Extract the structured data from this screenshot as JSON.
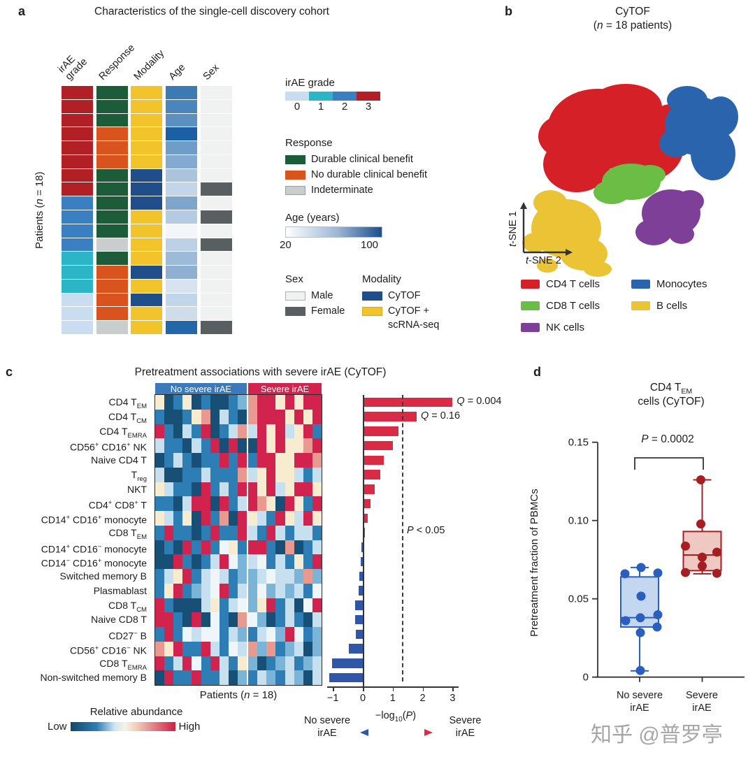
{
  "watermark": "知乎 @普罗亭",
  "panels": {
    "a": {
      "label": "a",
      "title": "Characteristics of the single-cell discovery cohort",
      "ylabel": "Patients (*n* = 18)",
      "col_headers": [
        "irAE\ngrade",
        "Response",
        "Modality",
        "Age",
        "Sex"
      ],
      "legend_irae": {
        "title": "irAE grade",
        "ticks": [
          "0",
          "1",
          "2",
          "3"
        ]
      },
      "legend_response": {
        "title": "Response",
        "items": [
          "Durable clinical benefit",
          "No durable clinical benefit",
          "Indeterminate"
        ]
      },
      "legend_age": {
        "title": "Age (years)",
        "min": "20",
        "max": "100"
      },
      "legend_sex": {
        "title": "Sex",
        "items": [
          "Male",
          "Female"
        ]
      },
      "legend_modality": {
        "title": "Modality",
        "item1": "CyTOF",
        "item2_line1": "CyTOF +",
        "item2_line2": "scRNA-seq"
      }
    },
    "b": {
      "label": "b",
      "title": "CyTOF",
      "subtitle": "(*n* = 18 patients)",
      "xlabel": "*t*-SNE 2",
      "ylabel": "*t*-SNE 1"
    },
    "c": {
      "label": "c",
      "title": "Pretreatment associations with severe irAE (CyTOF)",
      "patients_label": "Patients (*n* = 18)",
      "abundance_label": "Relative abundance",
      "low": "Low",
      "high": "High",
      "threshold_label": "*P* < 0.05",
      "foot_left_1": "No severe",
      "foot_left_2": "irAE",
      "foot_center": "−log_{10}(*P*)",
      "foot_right_1": "Severe",
      "foot_right_2": "irAE"
    },
    "d": {
      "label": "d",
      "title_1": "CD4 T_{EM}",
      "title_2": "cells (CyTOF)",
      "pval": "*P* = 0.0002",
      "ylabel": "Pretreatment fraction of PBMCs",
      "xlab1_1": "No severe",
      "xlab1_2": "irAE",
      "xlab2_1": "Severe",
      "xlab2_2": "irAE"
    }
  },
  "chart_data": [
    {
      "panel": "a",
      "type": "heatmap",
      "title": "Characteristics of the single-cell discovery cohort",
      "categories": [
        "irAE grade",
        "Response",
        "Modality",
        "Age",
        "Sex"
      ],
      "n_patients": 18,
      "colors": {
        "irae": {
          "0": "#c9ddf0",
          "1": "#2cb5c4",
          "2": "#3a7fc1",
          "3": "#b21f24"
        },
        "response": {
          "DCB": "#1d5c39",
          "NDCB": "#d8541c",
          "IND": "#c9cdcd"
        },
        "modality": {
          "CyTOF": "#1f4e8b",
          "CyTOF+scRNA-seq": "#f3c32c"
        },
        "sex": {
          "M": "#f0f2f2",
          "F": "#595f61"
        }
      },
      "age_scale": {
        "min": 20,
        "max": 100,
        "low_color": "#ffffff",
        "high_color": "#1b4f8c"
      },
      "patients": [
        {
          "irae": "3",
          "response": "DCB",
          "modality": "CyTOF+scRNA-seq",
          "age_color": "#3c7ab3",
          "sex": "M"
        },
        {
          "irae": "3",
          "response": "DCB",
          "modality": "CyTOF+scRNA-seq",
          "age_color": "#4a85bb",
          "sex": "M"
        },
        {
          "irae": "3",
          "response": "DCB",
          "modality": "CyTOF+scRNA-seq",
          "age_color": "#5b90c1",
          "sex": "M"
        },
        {
          "irae": "3",
          "response": "NDCB",
          "modality": "CyTOF+scRNA-seq",
          "age_color": "#1b5fa5",
          "sex": "M"
        },
        {
          "irae": "3",
          "response": "NDCB",
          "modality": "CyTOF+scRNA-seq",
          "age_color": "#6f9cc9",
          "sex": "M"
        },
        {
          "irae": "3",
          "response": "NDCB",
          "modality": "CyTOF+scRNA-seq",
          "age_color": "#84aad1",
          "sex": "M"
        },
        {
          "irae": "3",
          "response": "DCB",
          "modality": "CyTOF",
          "age_color": "#aac4de",
          "sex": "M"
        },
        {
          "irae": "3",
          "response": "DCB",
          "modality": "CyTOF",
          "age_color": "#c3d6e9",
          "sex": "F"
        },
        {
          "irae": "2",
          "response": "DCB",
          "modality": "CyTOF",
          "age_color": "#7ea6cd",
          "sex": "M"
        },
        {
          "irae": "2",
          "response": "DCB",
          "modality": "CyTOF+scRNA-seq",
          "age_color": "#b5cbe3",
          "sex": "F"
        },
        {
          "irae": "2",
          "response": "DCB",
          "modality": "CyTOF+scRNA-seq",
          "age_color": "#f2f6fa",
          "sex": "M"
        },
        {
          "irae": "2",
          "response": "IND",
          "modality": "CyTOF+scRNA-seq",
          "age_color": "#bdd1e6",
          "sex": "F"
        },
        {
          "irae": "1",
          "response": "DCB",
          "modality": "CyTOF+scRNA-seq",
          "age_color": "#9dbbd9",
          "sex": "M"
        },
        {
          "irae": "1",
          "response": "NDCB",
          "modality": "CyTOF",
          "age_color": "#8fb0d3",
          "sex": "M"
        },
        {
          "irae": "1",
          "response": "NDCB",
          "modality": "CyTOF+scRNA-seq",
          "age_color": "#d8e3ef",
          "sex": "M"
        },
        {
          "irae": "0",
          "response": "NDCB",
          "modality": "CyTOF",
          "age_color": "#c3d6e9",
          "sex": "M"
        },
        {
          "irae": "0",
          "response": "NDCB",
          "modality": "CyTOF+scRNA-seq",
          "age_color": "#cfdcea",
          "sex": "M"
        },
        {
          "irae": "0",
          "response": "IND",
          "modality": "CyTOF+scRNA-seq",
          "age_color": "#2268a9",
          "sex": "F"
        }
      ]
    },
    {
      "panel": "b",
      "type": "scatter",
      "title": "CyTOF (n = 18 patients)",
      "xlabel": "t-SNE 2",
      "ylabel": "t-SNE 1",
      "clusters": [
        {
          "name": "CD4 T cells",
          "color": "#d62027"
        },
        {
          "name": "CD8 T cells",
          "color": "#6abd45"
        },
        {
          "name": "NK cells",
          "color": "#7d3f98"
        },
        {
          "name": "Monocytes",
          "color": "#2a64ad"
        },
        {
          "name": "B cells",
          "color": "#eac435"
        }
      ]
    },
    {
      "panel": "c",
      "type": "heatmap+bar",
      "title": "Pretreatment associations with severe irAE (CyTOF)",
      "group_headers": [
        {
          "label": "No severe irAE",
          "color": "#3a7abc",
          "n_patients": 10
        },
        {
          "label": "Severe irAE",
          "color": "#d2234f",
          "n_patients": 8
        }
      ],
      "xlabel": "−log10(P)",
      "xticks": [
        "−1",
        "0",
        "1",
        "2",
        "3"
      ],
      "xtick_values": [
        -1,
        0,
        1,
        2,
        3
      ],
      "threshold_value": 1.3,
      "bar_colors": {
        "positive": "#d92b45",
        "negative": "#3056a8"
      },
      "palette": {
        "D": "#174f77",
        "B": "#2d7eb5",
        "b": "#7ab5d8",
        "L": "#c6e0ef",
        "W": "#eff6f9",
        "C": "#f7ecd0",
        "R": "#d2234f",
        "P": "#e89a90",
        "p": "#f2c4b4"
      },
      "rows": [
        {
          "label": "CD4 T_{EM}",
          "bar": 3.0,
          "annotation": "*Q* = 0.004",
          "cells": "CDBCDBDDBbPRRCRCRR"
        },
        {
          "label": "CD4 T_{CM}",
          "bar": 1.8,
          "annotation": "*Q* = 0.16",
          "cells": "BDDBCPDLBDPRRRCRCR"
        },
        {
          "label": "CD4 T_{EMRA}",
          "bar": 1.18,
          "cells": "RBDLBRDBLPLRCRLCRB"
        },
        {
          "label": "CD56^{+} CD16^{+} NK",
          "bar": 1.0,
          "cells": "LBBDLBRDRDDRCRCCPR"
        },
        {
          "label": "Naive CD4 T",
          "bar": 0.69,
          "cells": "DBLBDBBRBRBRRCCRRP"
        },
        {
          "label": "T_{reg}",
          "bar": 0.58,
          "cells": "LDDBBLBBBPLCRCCLBL"
        },
        {
          "label": "NKT",
          "bar": 0.4,
          "cells": "CLBBDRBLBRRCRLCRRC"
        },
        {
          "label": "CD4^{+} CD8^{+} T",
          "bar": 0.25,
          "cells": "BBDLRRDRBLRPCDRCBR"
        },
        {
          "label": "CD14^{+} CD16^{+} monocyte",
          "bar": 0.17,
          "cells": "CLBCDRBPDRCLBRCLRC"
        },
        {
          "label": "CD8 T_{EM}",
          "bar": 0.06,
          "cells": "BRBBDBRBBRLBRLBLLB"
        },
        {
          "label": "CD14^{+} CD16^{−} monocyte",
          "bar": -0.04,
          "cells": "DBDRBRBWCBRRBDPDBL"
        },
        {
          "label": "CD14^{−} CD16^{+} monocyte",
          "bar": -0.06,
          "cells": "DDRBDBLRWbLWBLBCBR"
        },
        {
          "label": "Switched memory B",
          "bar": -0.12,
          "cells": "BLCRBLWLBbbLWLLbPb"
        },
        {
          "label": "Plasmablast",
          "bar": -0.13,
          "cells": "BCRBbLWRBLbWbLbLBW"
        },
        {
          "label": "CD8 T_{CM}",
          "bar": -0.25,
          "cells": "RBDDDLCBLWbCRBLDWR"
        },
        {
          "label": "Naive CD8 T",
          "bar": -0.25,
          "cells": "RRBDRDWBDPWbDBLBDL"
        },
        {
          "label": "CD27^{−} B",
          "bar": -0.23,
          "cells": "BRBWLWWBLbBLWbRWBb"
        },
        {
          "label": "CD56^{+} CD16^{−} NK",
          "bar": -0.46,
          "cells": "PCRBBRLBWLPbPBbLDb"
        },
        {
          "label": "CD8 T_{EMRA}",
          "bar": -1.03,
          "cells": "RBLRWBRLBCbDBbLBbL"
        },
        {
          "label": "Non-switched memory B",
          "bar": -1.12,
          "cells": "DRBBRBBLDbBLbBLbDL"
        }
      ]
    },
    {
      "panel": "d",
      "type": "boxplot",
      "title": "CD4 TEM cells (CyTOF)",
      "ylabel": "Pretreatment fraction of PBMCs",
      "ylim": [
        0,
        0.15
      ],
      "yticks": [
        {
          "label": "0",
          "value": 0
        },
        {
          "label": "0.05",
          "value": 0.05
        },
        {
          "label": "0.10",
          "value": 0.1
        },
        {
          "label": "0.15",
          "value": 0.15
        }
      ],
      "p_value": "P = 0.0002",
      "groups": [
        {
          "name": "No severe irAE",
          "point_color": "#2b5fbf",
          "fill": "#c3d7f0",
          "box": {
            "whisker_low": 0.004,
            "q1": 0.032,
            "median": 0.038,
            "q3": 0.064,
            "whisker_high": 0.07
          },
          "points": [
            {
              "v": 0.066,
              "dx": -21
            },
            {
              "v": 0.07,
              "dx": 2
            },
            {
              "v": 0.0665,
              "dx": 26
            },
            {
              "v": 0.0517,
              "dx": 2
            },
            {
              "v": 0.0398,
              "dx": 26
            },
            {
              "v": 0.0379,
              "dx": 1
            },
            {
              "v": 0.036,
              "dx": -20
            },
            {
              "v": 0.032,
              "dx": 25
            },
            {
              "v": 0.0284,
              "dx": 1
            },
            {
              "v": 0.0042,
              "dx": 1
            }
          ]
        },
        {
          "name": "Severe irAE",
          "point_color": "#a41e22",
          "fill": "#f0c8c2",
          "box": {
            "whisker_low": 0.066,
            "q1": 0.068,
            "median": 0.078,
            "q3": 0.093,
            "whisker_high": 0.126
          },
          "points": [
            {
              "v": 0.126,
              "dx": -2
            },
            {
              "v": 0.0978,
              "dx": -2
            },
            {
              "v": 0.0837,
              "dx": -24
            },
            {
              "v": 0.0798,
              "dx": 21
            },
            {
              "v": 0.0766,
              "dx": 0
            },
            {
              "v": 0.071,
              "dx": 0
            },
            {
              "v": 0.0668,
              "dx": -24
            },
            {
              "v": 0.0663,
              "dx": 21
            }
          ]
        }
      ]
    }
  ]
}
